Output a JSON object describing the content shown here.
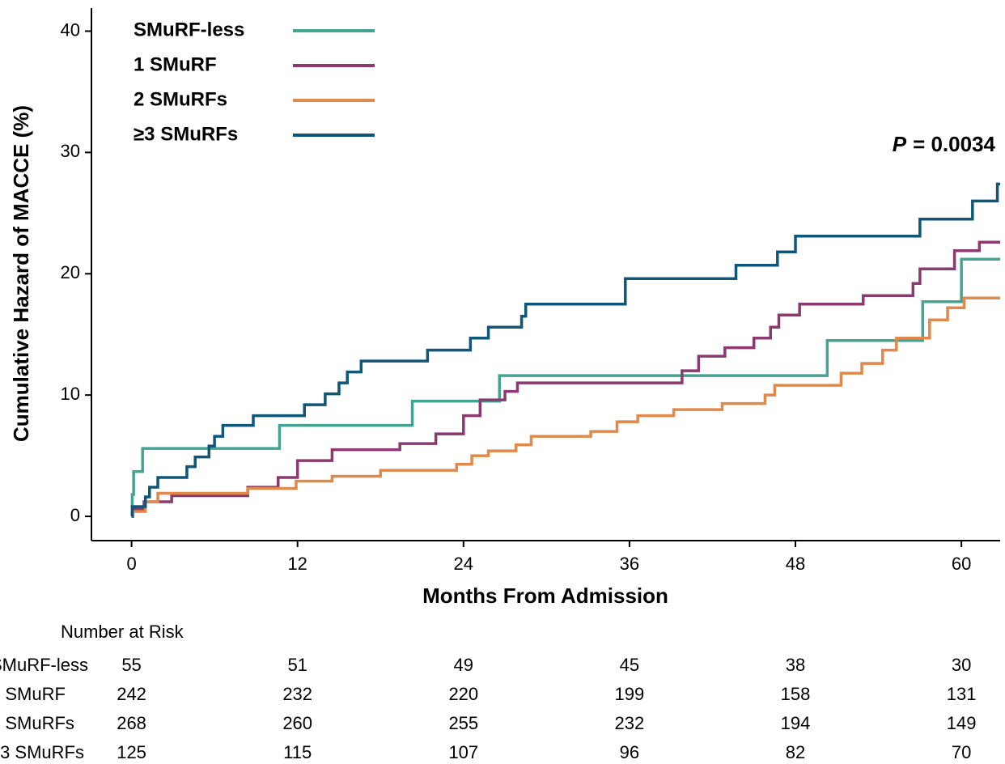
{
  "chart_data": {
    "type": "step",
    "xlabel": "Months From Admission",
    "ylabel": "Cumulative Hazard of MACCE (%)",
    "xlim": [
      -2.9,
      62.8
    ],
    "ylim": [
      -2,
      41.9
    ],
    "xticks": [
      0,
      12,
      24,
      36,
      48,
      60
    ],
    "yticks": [
      0,
      10,
      20,
      30,
      40
    ],
    "annotation": {
      "symbol": "P",
      "text": "= 0.0034"
    },
    "series": [
      {
        "name": "SMuRF-less",
        "color": "#45a392",
        "x": [
          0,
          0.05,
          0.15,
          0.8,
          10.7,
          20.3,
          26.6,
          50.3,
          57.2,
          60.0,
          62.8
        ],
        "values": [
          0,
          1.8,
          3.7,
          5.6,
          7.5,
          9.5,
          11.6,
          14.5,
          17.7,
          21.2,
          21.2
        ]
      },
      {
        "name": "1 SMuRF",
        "color": "#8b3a70",
        "x": [
          0,
          0.1,
          0.9,
          2.9,
          8.4,
          10.6,
          12,
          14.5,
          19.4,
          22,
          24,
          25.2,
          27,
          27.9,
          39.8,
          41,
          42.9,
          45,
          46.2,
          46.8,
          48.3,
          52.9,
          56.5,
          57,
          59.5,
          61.3,
          62.8
        ],
        "values": [
          0,
          0.6,
          1.2,
          1.7,
          2.4,
          3.2,
          4.6,
          5.5,
          6.0,
          6.8,
          8.3,
          9.6,
          10.3,
          11.0,
          12.0,
          13.2,
          13.9,
          14.7,
          15.6,
          16.6,
          17.5,
          18.2,
          19.2,
          20.4,
          21.9,
          22.6,
          22.6
        ]
      },
      {
        "name": "2 SMuRFs",
        "color": "#e0894a",
        "x": [
          0,
          0.1,
          1.0,
          1.9,
          8.4,
          11.9,
          14.5,
          18,
          23.5,
          24.6,
          25.8,
          27.8,
          28.9,
          33.2,
          35.1,
          36.6,
          39.2,
          42.7,
          45.8,
          46.5,
          51.3,
          52.8,
          54.3,
          55.3,
          57.7,
          59,
          60.2,
          62.8
        ],
        "values": [
          0,
          0.4,
          1.2,
          1.9,
          2.3,
          2.9,
          3.3,
          3.8,
          4.3,
          5.0,
          5.4,
          5.9,
          6.6,
          7.0,
          7.8,
          8.3,
          8.8,
          9.3,
          10.0,
          10.8,
          11.8,
          12.6,
          13.7,
          14.7,
          16.2,
          17.2,
          18.0,
          18.0
        ]
      },
      {
        "name": "≥3 SMuRFs",
        "color": "#0f5679",
        "x": [
          0,
          0.05,
          1.0,
          1.3,
          1.9,
          4.0,
          4.6,
          5.6,
          6.0,
          6.6,
          8.8,
          12.5,
          14,
          15,
          15.6,
          16.6,
          21.4,
          24.5,
          25.8,
          28.2,
          28.5,
          35.7,
          43.7,
          46.7,
          48,
          57,
          60.8,
          62.6,
          62.8
        ],
        "values": [
          0,
          0.8,
          1.6,
          2.4,
          3.2,
          4.1,
          4.9,
          5.8,
          6.6,
          7.5,
          8.3,
          9.2,
          10.1,
          11.0,
          11.9,
          12.8,
          13.7,
          14.7,
          15.6,
          16.5,
          17.5,
          19.6,
          20.7,
          21.8,
          23.1,
          24.5,
          26.0,
          27.4,
          27.4
        ]
      }
    ],
    "risk_table": {
      "title": "Number at Risk",
      "counts": [
        [
          55,
          51,
          49,
          45,
          38,
          30
        ],
        [
          242,
          232,
          220,
          199,
          158,
          131
        ],
        [
          268,
          260,
          255,
          232,
          194,
          149
        ],
        [
          125,
          115,
          107,
          96,
          82,
          70
        ]
      ]
    }
  }
}
